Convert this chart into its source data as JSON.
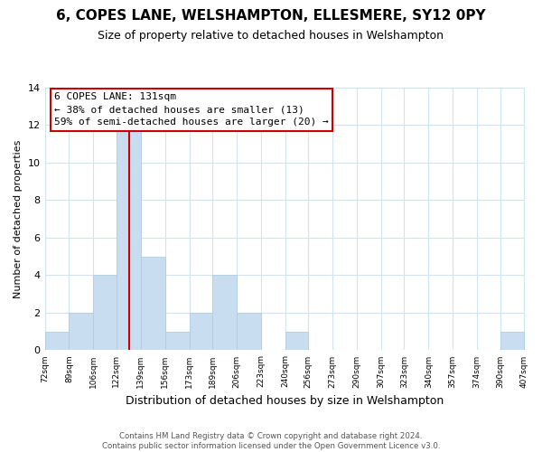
{
  "title": "6, COPES LANE, WELSHAMPTON, ELLESMERE, SY12 0PY",
  "subtitle": "Size of property relative to detached houses in Welshampton",
  "xlabel": "Distribution of detached houses by size in Welshampton",
  "ylabel": "Number of detached properties",
  "bar_color": "#c8ddf0",
  "bar_edge_color": "#b0cce0",
  "vline_value": 131,
  "vline_color": "#cc0000",
  "annotation_title": "6 COPES LANE: 131sqm",
  "annotation_line1": "← 38% of detached houses are smaller (13)",
  "annotation_line2": "59% of semi-detached houses are larger (20) →",
  "bin_edges": [
    72,
    89,
    106,
    122,
    139,
    156,
    173,
    189,
    206,
    223,
    240,
    256,
    273,
    290,
    307,
    323,
    340,
    357,
    374,
    390,
    407
  ],
  "counts": [
    1,
    2,
    4,
    12,
    5,
    1,
    2,
    4,
    2,
    0,
    1,
    0,
    0,
    0,
    0,
    0,
    0,
    0,
    0,
    1
  ],
  "tick_labels": [
    "72sqm",
    "89sqm",
    "106sqm",
    "122sqm",
    "139sqm",
    "156sqm",
    "173sqm",
    "189sqm",
    "206sqm",
    "223sqm",
    "240sqm",
    "256sqm",
    "273sqm",
    "290sqm",
    "307sqm",
    "323sqm",
    "340sqm",
    "357sqm",
    "374sqm",
    "390sqm",
    "407sqm"
  ],
  "ylim": [
    0,
    14
  ],
  "yticks": [
    0,
    2,
    4,
    6,
    8,
    10,
    12,
    14
  ],
  "footer_line1": "Contains HM Land Registry data © Crown copyright and database right 2024.",
  "footer_line2": "Contains public sector information licensed under the Open Government Licence v3.0.",
  "background_color": "#ffffff",
  "grid_color": "#d0e4f0",
  "title_fontsize": 11,
  "subtitle_fontsize": 9,
  "annotation_box_edge_color": "#cc0000",
  "annotation_box_facecolor": "#ffffff"
}
